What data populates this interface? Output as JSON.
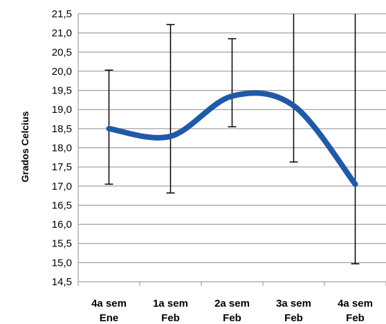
{
  "chart_data": {
    "type": "line",
    "title": "",
    "xlabel": "",
    "ylabel": "Grados Celcius",
    "categories": [
      [
        "4a sem",
        "Ene"
      ],
      [
        "1a sem",
        "Feb"
      ],
      [
        "2a sem",
        "Feb"
      ],
      [
        "3a sem",
        "Feb"
      ],
      [
        "4a sem",
        "Feb"
      ]
    ],
    "series": [
      {
        "values": [
          18.5,
          18.3,
          19.35,
          19.1,
          17.05
        ],
        "error_low": [
          17.05,
          16.82,
          18.55,
          17.63,
          14.97
        ],
        "error_high": [
          20.03,
          21.22,
          20.85,
          21.5,
          21.5
        ]
      }
    ],
    "ylim": [
      14.5,
      21.5
    ],
    "ytick_step": 0.5,
    "ytick_labels": [
      "14,5",
      "15,0",
      "15,5",
      "16,0",
      "16,5",
      "17,0",
      "17,5",
      "18,0",
      "18,5",
      "19,0",
      "19,5",
      "20,0",
      "20,5",
      "21,0",
      "21,5"
    ],
    "smooth": true,
    "grid": true,
    "legend": "none",
    "colors": {
      "line": "#1f5aa8",
      "grid": "#8c8c8c",
      "error": "#000000",
      "axis": "#8c8c8c"
    }
  }
}
